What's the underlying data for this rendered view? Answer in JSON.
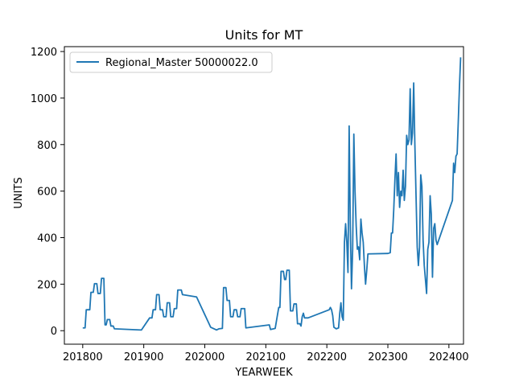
{
  "chart_data": {
    "type": "line",
    "title": "Units for MT",
    "xlabel": "YEARWEEK",
    "ylabel": "UNITS",
    "xlim": [
      201768,
      202422
    ],
    "ylim": [
      -58,
      1221
    ],
    "x_ticks": [
      "201800",
      "201900",
      "202000",
      "202100",
      "202200",
      "202300",
      "202400"
    ],
    "y_ticks": [
      "0",
      "200",
      "400",
      "600",
      "800",
      "1000",
      "1200"
    ],
    "legend_position": "upper-left",
    "grid": false,
    "colors": {
      "line": "#1f77b4",
      "frame": "#000000",
      "legend_border": "#cccccc"
    },
    "series": [
      {
        "name": "Regional_Master 50000022.0",
        "points": [
          [
            201800,
            12
          ],
          [
            201802,
            12
          ],
          [
            201803,
            90
          ],
          [
            201806,
            90
          ],
          [
            201807,
            165
          ],
          [
            201809,
            165
          ],
          [
            201810,
            202
          ],
          [
            201812,
            202
          ],
          [
            201813,
            160
          ],
          [
            201815,
            160
          ],
          [
            201816,
            225
          ],
          [
            201818,
            225
          ],
          [
            201819,
            25
          ],
          [
            201820,
            25
          ],
          [
            201821,
            48
          ],
          [
            201823,
            48
          ],
          [
            201824,
            20
          ],
          [
            201826,
            20
          ],
          [
            201827,
            8
          ],
          [
            201850,
            3
          ],
          [
            201905,
            55
          ],
          [
            201907,
            55
          ],
          [
            201908,
            90
          ],
          [
            201910,
            90
          ],
          [
            201911,
            155
          ],
          [
            201913,
            155
          ],
          [
            201914,
            90
          ],
          [
            201916,
            90
          ],
          [
            201917,
            60
          ],
          [
            201919,
            60
          ],
          [
            201920,
            120
          ],
          [
            201922,
            120
          ],
          [
            201923,
            60
          ],
          [
            201925,
            60
          ],
          [
            201926,
            95
          ],
          [
            201928,
            95
          ],
          [
            201929,
            175
          ],
          [
            201932,
            175
          ],
          [
            201933,
            155
          ],
          [
            201945,
            145
          ],
          [
            202005,
            15
          ],
          [
            202010,
            3
          ],
          [
            202012,
            8
          ],
          [
            202015,
            10
          ],
          [
            202016,
            185
          ],
          [
            202018,
            185
          ],
          [
            202019,
            130
          ],
          [
            202021,
            130
          ],
          [
            202022,
            60
          ],
          [
            202024,
            60
          ],
          [
            202025,
            90
          ],
          [
            202027,
            90
          ],
          [
            202028,
            60
          ],
          [
            202030,
            60
          ],
          [
            202031,
            95
          ],
          [
            202034,
            95
          ],
          [
            202035,
            12
          ],
          [
            202103,
            25
          ],
          [
            202104,
            5
          ],
          [
            202108,
            10
          ],
          [
            202111,
            100
          ],
          [
            202112,
            100
          ],
          [
            202113,
            255
          ],
          [
            202115,
            255
          ],
          [
            202116,
            220
          ],
          [
            202117,
            220
          ],
          [
            202118,
            260
          ],
          [
            202120,
            260
          ],
          [
            202121,
            85
          ],
          [
            202123,
            85
          ],
          [
            202124,
            115
          ],
          [
            202126,
            115
          ],
          [
            202127,
            30
          ],
          [
            202129,
            30
          ],
          [
            202130,
            20
          ],
          [
            202131,
            60
          ],
          [
            202132,
            75
          ],
          [
            202133,
            55
          ],
          [
            202136,
            55
          ],
          [
            202202,
            90
          ],
          [
            202203,
            100
          ],
          [
            202204,
            90
          ],
          [
            202205,
            65
          ],
          [
            202206,
            15
          ],
          [
            202208,
            8
          ],
          [
            202210,
            12
          ],
          [
            202211,
            75
          ],
          [
            202212,
            120
          ],
          [
            202213,
            60
          ],
          [
            202214,
            45
          ],
          [
            202215,
            380
          ],
          [
            202216,
            460
          ],
          [
            202217,
            380
          ],
          [
            202218,
            250
          ],
          [
            202219,
            880
          ],
          [
            202220,
            450
          ],
          [
            202221,
            180
          ],
          [
            202222,
            350
          ],
          [
            202223,
            845
          ],
          [
            202224,
            600
          ],
          [
            202225,
            450
          ],
          [
            202226,
            350
          ],
          [
            202227,
            360
          ],
          [
            202228,
            305
          ],
          [
            202229,
            480
          ],
          [
            202230,
            420
          ],
          [
            202231,
            380
          ],
          [
            202232,
            280
          ],
          [
            202233,
            200
          ],
          [
            202234,
            260
          ],
          [
            202235,
            330
          ],
          [
            202252,
            332
          ],
          [
            202302,
            335
          ],
          [
            202303,
            420
          ],
          [
            202304,
            420
          ],
          [
            202305,
            520
          ],
          [
            202306,
            650
          ],
          [
            202307,
            760
          ],
          [
            202308,
            580
          ],
          [
            202309,
            680
          ],
          [
            202310,
            530
          ],
          [
            202311,
            600
          ],
          [
            202312,
            580
          ],
          [
            202313,
            690
          ],
          [
            202314,
            560
          ],
          [
            202315,
            620
          ],
          [
            202316,
            840
          ],
          [
            202317,
            800
          ],
          [
            202318,
            820
          ],
          [
            202319,
            1040
          ],
          [
            202320,
            800
          ],
          [
            202321,
            850
          ],
          [
            202322,
            1065
          ],
          [
            202323,
            800
          ],
          [
            202324,
            580
          ],
          [
            202325,
            360
          ],
          [
            202326,
            280
          ],
          [
            202327,
            360
          ],
          [
            202328,
            670
          ],
          [
            202329,
            620
          ],
          [
            202330,
            390
          ],
          [
            202331,
            280
          ],
          [
            202332,
            220
          ],
          [
            202333,
            160
          ],
          [
            202334,
            350
          ],
          [
            202335,
            380
          ],
          [
            202336,
            580
          ],
          [
            202337,
            500
          ],
          [
            202338,
            230
          ],
          [
            202339,
            440
          ],
          [
            202340,
            460
          ],
          [
            202341,
            390
          ],
          [
            202342,
            370
          ],
          [
            202403,
            560
          ],
          [
            202404,
            720
          ],
          [
            202405,
            680
          ],
          [
            202406,
            750
          ],
          [
            202407,
            760
          ],
          [
            202408,
            900
          ],
          [
            202409,
            1050
          ],
          [
            202410,
            1175
          ]
        ]
      }
    ]
  }
}
